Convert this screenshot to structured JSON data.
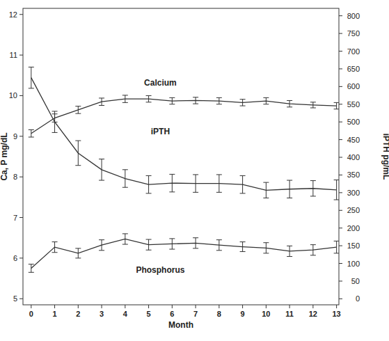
{
  "chart_data": {
    "type": "line",
    "x_label": "Month",
    "y_label": "Ca, P mg/dL",
    "y2_label": "iPTH pg/mL",
    "x": [
      0,
      1,
      2,
      3,
      4,
      5,
      6,
      7,
      8,
      9,
      10,
      11,
      12,
      13
    ],
    "xlim": [
      -0.35,
      13.1
    ],
    "xticks": [
      0,
      1,
      2,
      3,
      4,
      5,
      6,
      7,
      8,
      9,
      10,
      11,
      12,
      13
    ],
    "ylim": [
      4.85,
      12.15
    ],
    "yticks": [
      5,
      6,
      7,
      8,
      9,
      10,
      11,
      12
    ],
    "y2lim": [
      -17,
      821
    ],
    "y2ticks": [
      0,
      50,
      100,
      150,
      200,
      250,
      300,
      350,
      400,
      450,
      500,
      550,
      600,
      650,
      700,
      750,
      800
    ],
    "grid": false,
    "series": [
      {
        "name": "Calcium",
        "color": "#333333",
        "marker": "errorbar",
        "values": [
          9.07,
          9.45,
          9.65,
          9.85,
          9.92,
          9.92,
          9.87,
          9.88,
          9.87,
          9.83,
          9.87,
          9.8,
          9.77,
          9.75
        ],
        "errors": [
          0.09,
          0.1,
          0.09,
          0.09,
          0.09,
          0.08,
          0.08,
          0.08,
          0.08,
          0.08,
          0.08,
          0.08,
          0.07,
          0.08
        ]
      },
      {
        "name": "iPTH",
        "color": "#333333",
        "marker": "errorbar",
        "axis": "y2",
        "values": [
          625,
          500,
          412,
          365,
          340,
          323,
          327,
          326,
          326,
          323,
          307,
          310,
          312,
          308
        ],
        "errors": [
          30,
          30,
          35,
          30,
          25,
          25,
          25,
          25,
          25,
          25,
          22,
          25,
          22,
          28
        ]
      },
      {
        "name": "Phosphorus",
        "color": "#333333",
        "marker": "errorbar",
        "values": [
          5.75,
          6.27,
          6.12,
          6.32,
          6.47,
          6.33,
          6.35,
          6.37,
          6.32,
          6.28,
          6.25,
          6.17,
          6.2,
          6.27
        ],
        "errors": [
          0.1,
          0.13,
          0.12,
          0.13,
          0.13,
          0.13,
          0.13,
          0.13,
          0.13,
          0.12,
          0.13,
          0.13,
          0.13,
          0.15
        ]
      }
    ]
  }
}
